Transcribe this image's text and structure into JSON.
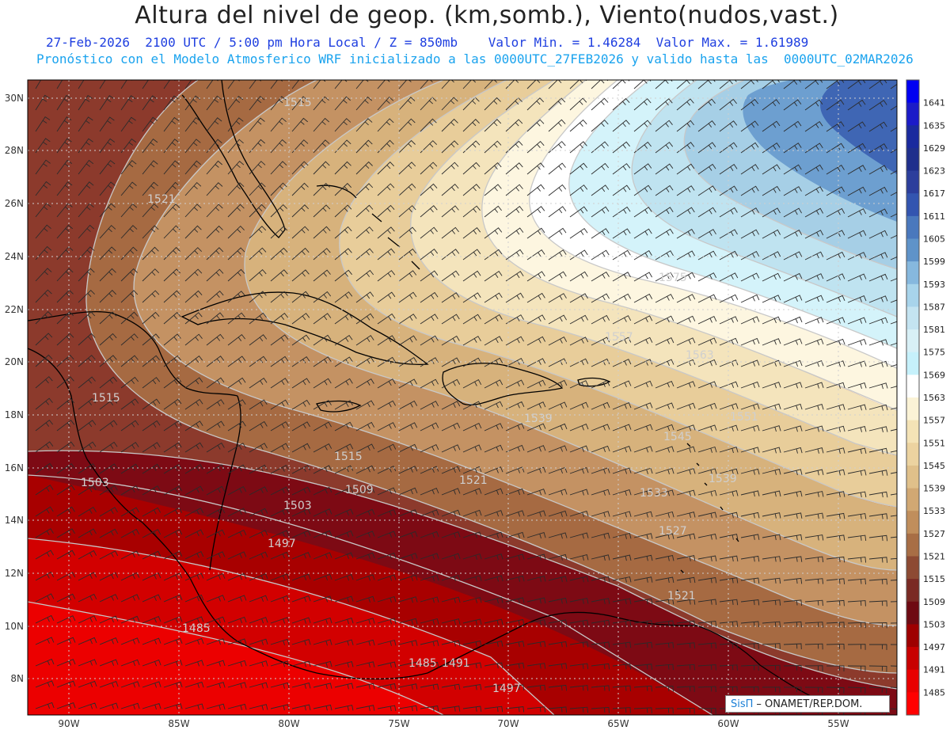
{
  "header": {
    "title": "Altura del nivel de geop. (km,somb.), Viento(nudos,vast.)",
    "subtitle_1": "27-Feb-2026  2100 UTC / 5:00 pm Hora Local / Z = 850mb    Valor Min. = 1.46284  Valor Max. = 1.61989",
    "subtitle_2": "Pronóstico con el Modelo Atmosferico WRF inicializado a las 0000UTC_27FEB2026 y valido hasta las  0000UTC_02MAR2026"
  },
  "map": {
    "lon_labels": [
      "90W",
      "85W",
      "80W",
      "75W",
      "70W",
      "65W",
      "60W",
      "55W"
    ],
    "lat_labels": [
      "30N",
      "28N",
      "26N",
      "24N",
      "22N",
      "20N",
      "18N",
      "16N",
      "14N",
      "12N",
      "10N",
      "8N"
    ],
    "contour_labels": [
      "1515",
      "1521",
      "1515",
      "1503",
      "1515",
      "1509",
      "1503",
      "1497",
      "1485",
      "1485",
      "1491",
      "1497",
      "1521",
      "1539",
      "1557",
      "1563",
      "1575",
      "1551",
      "1539",
      "1533",
      "1527",
      "1521",
      "1545"
    ]
  },
  "colorbar": {
    "levels": [
      "1641",
      "1635",
      "1629",
      "1623",
      "1617",
      "1611",
      "1605",
      "1599",
      "1593",
      "1587",
      "1581",
      "1575",
      "1569",
      "1563",
      "1557",
      "1551",
      "1545",
      "1539",
      "1533",
      "1527",
      "1521",
      "1515",
      "1509",
      "1503",
      "1497",
      "1491",
      "1485"
    ],
    "colors": [
      "#0000f2",
      "#1b1bc8",
      "#1a2a9e",
      "#1f2f8c",
      "#2c3e9c",
      "#3355b0",
      "#4a78bd",
      "#5f93c9",
      "#86b8de",
      "#a8d4eb",
      "#c4e4f1",
      "#d8f0f6",
      "#c6f1fb",
      "#ffffff",
      "#fbf3d6",
      "#f4e3b6",
      "#ecd3a0",
      "#e0c08a",
      "#d1a873",
      "#c08e5c",
      "#a86e45",
      "#8d4a33",
      "#7a2a24",
      "#6e0a12",
      "#9e0000",
      "#c80000",
      "#e80000",
      "#ff0000"
    ]
  },
  "credit": {
    "sis": "SisΠ",
    "rest": "– ONAMET/REP.DOM."
  }
}
